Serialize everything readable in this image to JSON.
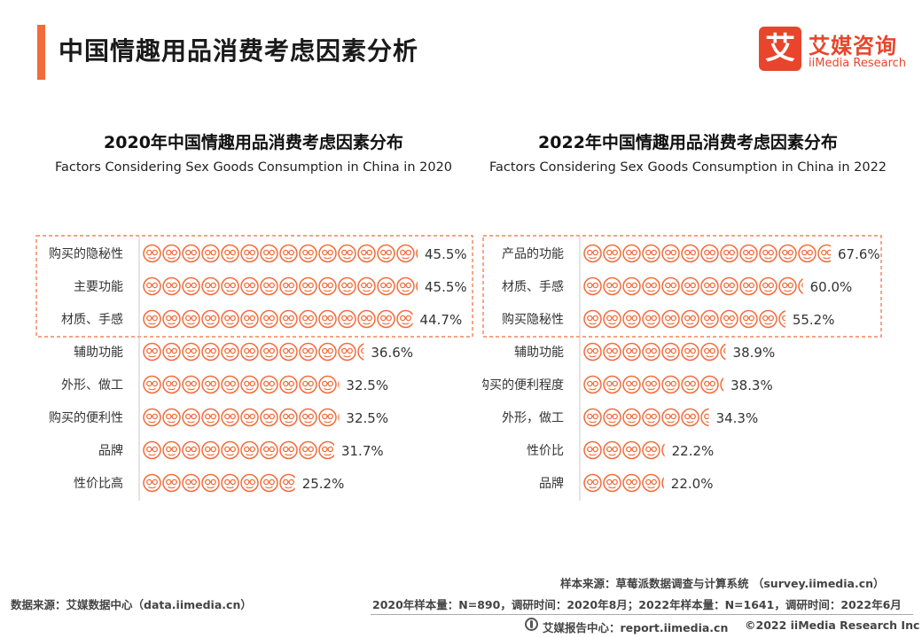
{
  "page": {
    "title": "中国情趣用品消费考虑因素分析",
    "logo_char": "艾",
    "logo_cn": "艾媒咨询",
    "logo_en": "iiMedia Research"
  },
  "charts": {
    "left": {
      "title": "2020年中国情趣用品消费考虑因素分布",
      "subtitle": "Factors Considering Sex Goods Consumption in China in 2020"
    },
    "right": {
      "title": "2022年中国情趣用品消费考虑因素分布",
      "subtitle": "Factors Considering Sex Goods Consumption in China in 2022"
    }
  },
  "chart_data": [
    {
      "type": "bar",
      "title": "2020年中国情趣用品消费考虑因素分布",
      "subtitle": "Factors Considering Sex Goods Consumption in China in 2020",
      "categories": [
        "购买的隐秘性",
        "主要功能",
        "材质、手感",
        "辅助功能",
        "外形、做工",
        "购买的便利性",
        "品牌",
        "性价比高"
      ],
      "values": [
        45.5,
        45.5,
        44.7,
        36.6,
        32.5,
        32.5,
        31.7,
        25.2
      ],
      "value_labels": [
        "45.5%",
        "45.5%",
        "44.7%",
        "36.6%",
        "32.5%",
        "32.5%",
        "31.7%",
        "25.2%"
      ],
      "highlighted_top": 3,
      "mark": "emoji-icons",
      "color": "#f26b3a"
    },
    {
      "type": "bar",
      "title": "2022年中国情趣用品消费考虑因素分布",
      "subtitle": "Factors Considering Sex Goods Consumption in China in 2022",
      "categories": [
        "产品的功能",
        "材质、手感",
        "购买隐秘性",
        "辅助功能",
        "购买的便利程度",
        "外形，做工",
        "性价比",
        "品牌"
      ],
      "values": [
        67.6,
        60.0,
        55.2,
        38.9,
        38.3,
        34.3,
        22.2,
        22.0
      ],
      "value_labels": [
        "67.6%",
        "60.0%",
        "55.2%",
        "38.9%",
        "38.3%",
        "34.3%",
        "22.2%",
        "22.0%"
      ],
      "highlighted_top": 3,
      "mark": "emoji-icons",
      "color": "#f26b3a"
    }
  ],
  "footer": {
    "sample_source": "样本来源：草莓派数据调查与计算系统 （survey.iimedia.cn）",
    "data_source": "数据来源：艾媒数据中心（data.iimedia.cn）",
    "sample_info": "2020年样本量：N=890，调研时间：2020年8月；2022年样本量：N=1641，调研时间：2022年6月",
    "report_center": "艾媒报告中心：report.iimedia.cn",
    "copyright": "©2022  iiMedia Research  Inc"
  }
}
